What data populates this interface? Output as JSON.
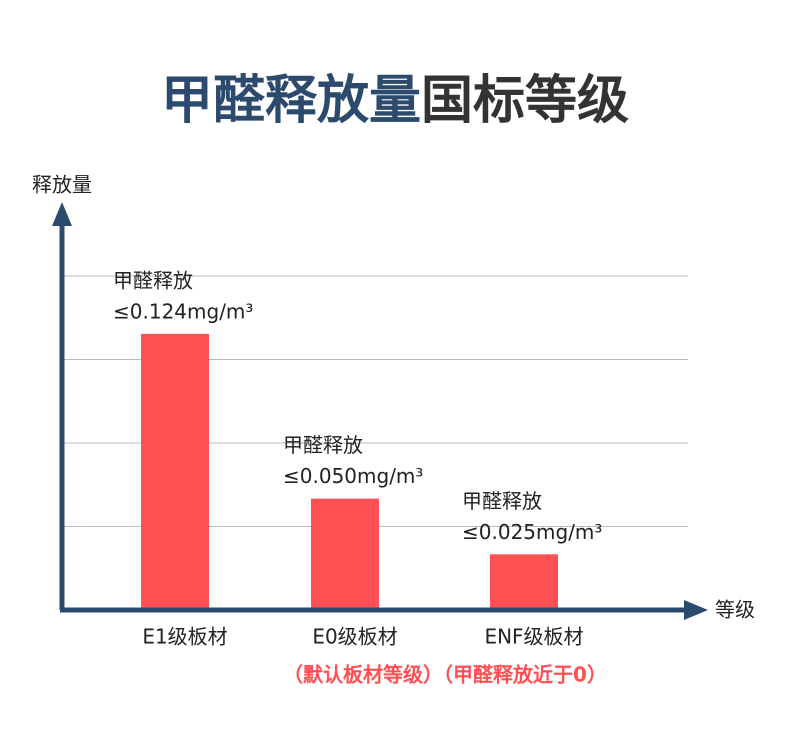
{
  "chart_data": {
    "type": "bar",
    "title_parts": [
      "甲醛释放量",
      "国标等级"
    ],
    "title_colors": [
      "#2c4a6e",
      "#333333"
    ],
    "y_label": "释放量",
    "x_label": "等级",
    "categories": [
      "E1级板材",
      "E0级板材",
      "ENF级板材"
    ],
    "values": [
      0.124,
      0.05,
      0.025
    ],
    "label_title": "甲醛释放",
    "value_labels": [
      "≤0.124mg/m³",
      "≤0.050mg/m³",
      "≤0.025mg/m³"
    ],
    "note": "（默认板材等级）（甲醛释放近于0）",
    "color": "#ff5053",
    "axis_color": "#2c4a6e",
    "note_color": "#ff5053",
    "ylim": [
      0,
      0.15
    ],
    "grid": true
  }
}
